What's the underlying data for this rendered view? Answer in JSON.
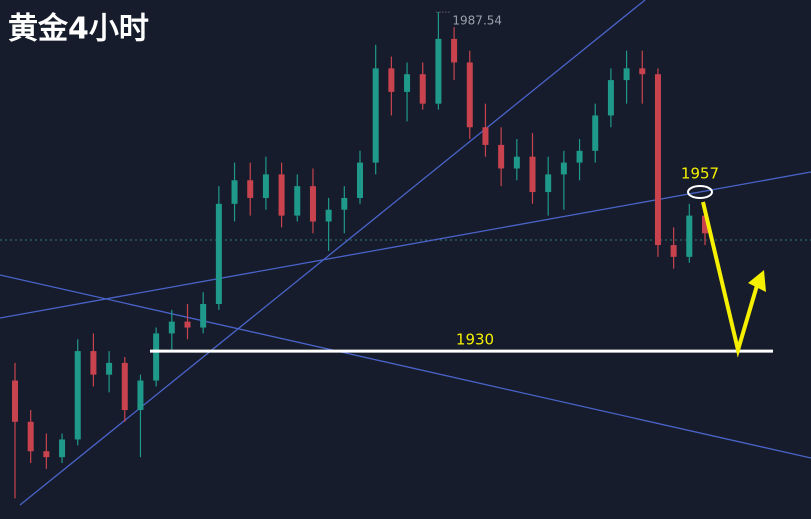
{
  "chart_data": {
    "type": "candlestick",
    "title": "黄金4小时",
    "ylim": [
      1901.5,
      1989.6
    ],
    "up_color": "#1f9a8a",
    "down_color": "#c9434f",
    "candles": {
      "open": [
        1925,
        1918,
        1913,
        1912,
        1915,
        1930,
        1926,
        1928,
        1920,
        1925,
        1933,
        1935,
        1934,
        1938,
        1955,
        1959,
        1956,
        1960,
        1953,
        1958,
        1952,
        1954,
        1956,
        1962,
        1978,
        1974,
        1977,
        1972,
        1983,
        1979,
        1968,
        1965,
        1961,
        1963,
        1957,
        1960,
        1962,
        1964,
        1970,
        1976,
        1978,
        1977,
        1948,
        1946,
        1953
      ],
      "high": [
        1928,
        1920,
        1916,
        1916,
        1932,
        1933,
        1930,
        1929,
        1926,
        1934,
        1937,
        1938,
        1940,
        1958,
        1962,
        1962,
        1963,
        1962,
        1960,
        1961,
        1956,
        1958,
        1964,
        1982,
        1980,
        1979,
        1979,
        1987.54,
        1985,
        1981,
        1972,
        1968,
        1966,
        1967,
        1963,
        1964,
        1966,
        1972,
        1978,
        1981,
        1981,
        1978,
        1951,
        1955,
        1955
      ],
      "low": [
        1905,
        1911,
        1910,
        1911,
        1914,
        1924,
        1923,
        1918,
        1912,
        1924,
        1930,
        1932,
        1933,
        1937,
        1952,
        1953,
        1954,
        1951,
        1952,
        1950,
        1947,
        1950,
        1955,
        1960,
        1970,
        1969,
        1971,
        1971,
        1976,
        1966,
        1963,
        1958,
        1959,
        1955,
        1953,
        1954,
        1959,
        1962,
        1968,
        1972,
        1972,
        1946,
        1944,
        1945,
        1948
      ],
      "close": [
        1918,
        1913,
        1912,
        1915,
        1930,
        1926,
        1928,
        1920,
        1925,
        1933,
        1935,
        1934,
        1938,
        1955,
        1959,
        1956,
        1960,
        1953,
        1958,
        1952,
        1954,
        1956,
        1962,
        1978,
        1974,
        1977,
        1972,
        1983,
        1979,
        1968,
        1965,
        1961,
        1963,
        1957,
        1960,
        1962,
        1964,
        1970,
        1976,
        1978,
        1977,
        1948,
        1946,
        1953,
        1950
      ]
    },
    "annotations": [
      {
        "value": 1987.54
      },
      {
        "value": 1957
      },
      {
        "value": 1930
      }
    ]
  }
}
